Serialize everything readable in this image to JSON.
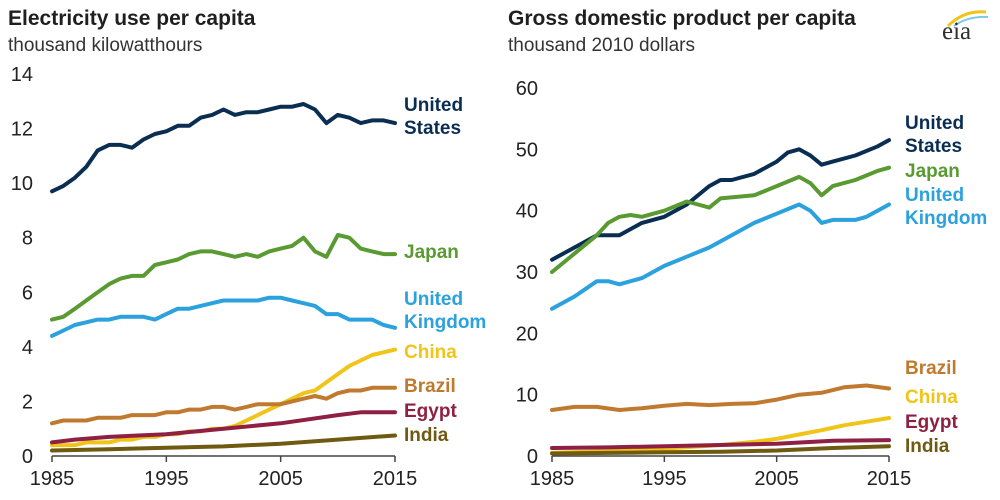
{
  "logo_text": "eia",
  "chart_data": [
    {
      "type": "line",
      "title": "Electricity use per capita",
      "subtitle": "thousand kilowatthours",
      "xlim": [
        1985,
        2015
      ],
      "ylim": [
        0,
        14
      ],
      "x_ticks": [
        1985,
        1995,
        2005,
        2015
      ],
      "y_ticks": [
        0,
        2,
        4,
        6,
        8,
        10,
        12,
        14
      ],
      "grid": false,
      "series": [
        {
          "label_lines": [
            "United",
            "States"
          ],
          "color": "#0a2e52",
          "x": [
            1985,
            1986,
            1987,
            1988,
            1989,
            1990,
            1991,
            1992,
            1993,
            1994,
            1995,
            1996,
            1997,
            1998,
            1999,
            2000,
            2001,
            2002,
            2003,
            2004,
            2005,
            2006,
            2007,
            2008,
            2009,
            2010,
            2011,
            2012,
            2013,
            2014,
            2015
          ],
          "y": [
            9.7,
            9.9,
            10.2,
            10.6,
            11.2,
            11.4,
            11.4,
            11.3,
            11.6,
            11.8,
            11.9,
            12.1,
            12.1,
            12.4,
            12.5,
            12.7,
            12.5,
            12.6,
            12.6,
            12.7,
            12.8,
            12.8,
            12.9,
            12.7,
            12.2,
            12.5,
            12.4,
            12.2,
            12.3,
            12.3,
            12.2
          ]
        },
        {
          "label_lines": [
            "Japan"
          ],
          "color": "#5a9a32",
          "x": [
            1985,
            1986,
            1987,
            1988,
            1989,
            1990,
            1991,
            1992,
            1993,
            1994,
            1995,
            1996,
            1997,
            1998,
            1999,
            2000,
            2001,
            2002,
            2003,
            2004,
            2005,
            2006,
            2007,
            2008,
            2009,
            2010,
            2011,
            2012,
            2013,
            2014,
            2015
          ],
          "y": [
            5.0,
            5.1,
            5.4,
            5.7,
            6.0,
            6.3,
            6.5,
            6.6,
            6.6,
            7.0,
            7.1,
            7.2,
            7.4,
            7.5,
            7.5,
            7.4,
            7.3,
            7.4,
            7.3,
            7.5,
            7.6,
            7.7,
            8.0,
            7.5,
            7.3,
            8.1,
            8.0,
            7.6,
            7.5,
            7.4,
            7.4
          ]
        },
        {
          "label_lines": [
            "United",
            "Kingdom"
          ],
          "color": "#2ba1de",
          "x": [
            1985,
            1986,
            1987,
            1988,
            1989,
            1990,
            1991,
            1992,
            1993,
            1994,
            1995,
            1996,
            1997,
            1998,
            1999,
            2000,
            2001,
            2002,
            2003,
            2004,
            2005,
            2006,
            2007,
            2008,
            2009,
            2010,
            2011,
            2012,
            2013,
            2014,
            2015
          ],
          "y": [
            4.4,
            4.6,
            4.8,
            4.9,
            5.0,
            5.0,
            5.1,
            5.1,
            5.1,
            5.0,
            5.2,
            5.4,
            5.4,
            5.5,
            5.6,
            5.7,
            5.7,
            5.7,
            5.7,
            5.8,
            5.8,
            5.7,
            5.6,
            5.5,
            5.2,
            5.2,
            5.0,
            5.0,
            5.0,
            4.8,
            4.7
          ]
        },
        {
          "label_lines": [
            "China"
          ],
          "color": "#f0c419",
          "x": [
            1985,
            1986,
            1987,
            1988,
            1989,
            1990,
            1991,
            1992,
            1993,
            1994,
            1995,
            1996,
            1997,
            1998,
            1999,
            2000,
            2001,
            2002,
            2003,
            2004,
            2005,
            2006,
            2007,
            2008,
            2009,
            2010,
            2011,
            2012,
            2013,
            2014,
            2015
          ],
          "y": [
            0.4,
            0.4,
            0.4,
            0.5,
            0.5,
            0.5,
            0.6,
            0.6,
            0.7,
            0.7,
            0.8,
            0.8,
            0.9,
            0.9,
            1.0,
            1.0,
            1.1,
            1.3,
            1.5,
            1.7,
            1.9,
            2.1,
            2.3,
            2.4,
            2.7,
            3.0,
            3.3,
            3.5,
            3.7,
            3.8,
            3.9
          ]
        },
        {
          "label_lines": [
            "Brazil"
          ],
          "color": "#c07a30",
          "x": [
            1985,
            1986,
            1987,
            1988,
            1989,
            1990,
            1991,
            1992,
            1993,
            1994,
            1995,
            1996,
            1997,
            1998,
            1999,
            2000,
            2001,
            2002,
            2003,
            2004,
            2005,
            2006,
            2007,
            2008,
            2009,
            2010,
            2011,
            2012,
            2013,
            2014,
            2015
          ],
          "y": [
            1.2,
            1.3,
            1.3,
            1.3,
            1.4,
            1.4,
            1.4,
            1.5,
            1.5,
            1.5,
            1.6,
            1.6,
            1.7,
            1.7,
            1.8,
            1.8,
            1.7,
            1.8,
            1.9,
            1.9,
            1.9,
            2.0,
            2.1,
            2.2,
            2.1,
            2.3,
            2.4,
            2.4,
            2.5,
            2.5,
            2.5
          ]
        },
        {
          "label_lines": [
            "Egypt"
          ],
          "color": "#8e2043",
          "x": [
            1985,
            1987,
            1990,
            1995,
            2000,
            2005,
            2010,
            2012,
            2015
          ],
          "y": [
            0.5,
            0.6,
            0.7,
            0.8,
            1.0,
            1.2,
            1.5,
            1.6,
            1.6
          ]
        },
        {
          "label_lines": [
            "India"
          ],
          "color": "#6e5a10",
          "x": [
            1985,
            1990,
            1995,
            2000,
            2005,
            2010,
            2015
          ],
          "y": [
            0.2,
            0.25,
            0.3,
            0.35,
            0.45,
            0.6,
            0.75
          ]
        }
      ]
    },
    {
      "type": "line",
      "title": "Gross domestic product per capita",
      "subtitle": "thousand 2010 dollars",
      "xlim": [
        1985,
        2015
      ],
      "ylim": [
        0,
        60
      ],
      "x_ticks": [
        1985,
        1995,
        2005,
        2015
      ],
      "y_ticks": [
        0,
        10,
        20,
        30,
        40,
        50,
        60
      ],
      "grid": false,
      "series": [
        {
          "label_lines": [
            "United",
            "States"
          ],
          "color": "#0a2e52",
          "x": [
            1985,
            1987,
            1989,
            1991,
            1993,
            1995,
            1997,
            1999,
            2000,
            2001,
            2003,
            2005,
            2006,
            2007,
            2008,
            2009,
            2010,
            2012,
            2014,
            2015
          ],
          "y": [
            32,
            34,
            36,
            36,
            38,
            39,
            41,
            44,
            45,
            45,
            46,
            48,
            49.5,
            50,
            49,
            47.5,
            48,
            49,
            50.5,
            51.5
          ]
        },
        {
          "label_lines": [
            "Japan"
          ],
          "color": "#5a9a32",
          "x": [
            1985,
            1987,
            1989,
            1990,
            1991,
            1992,
            1993,
            1995,
            1997,
            1998,
            1999,
            2000,
            2003,
            2005,
            2007,
            2008,
            2009,
            2010,
            2012,
            2014,
            2015
          ],
          "y": [
            30,
            33,
            36,
            38,
            39,
            39.3,
            39,
            40,
            41.5,
            41,
            40.5,
            42,
            42.5,
            44,
            45.5,
            44.5,
            42.5,
            44,
            45,
            46.5,
            47
          ]
        },
        {
          "label_lines": [
            "United",
            "Kingdom"
          ],
          "color": "#2ba1de",
          "x": [
            1985,
            1987,
            1989,
            1990,
            1991,
            1993,
            1995,
            1997,
            1999,
            2001,
            2003,
            2005,
            2007,
            2008,
            2009,
            2010,
            2012,
            2013,
            2015
          ],
          "y": [
            24,
            26,
            28.5,
            28.5,
            28,
            29,
            31,
            32.5,
            34,
            36,
            38,
            39.5,
            41,
            40,
            38,
            38.5,
            38.5,
            39,
            41
          ]
        },
        {
          "label_lines": [
            "Brazil"
          ],
          "color": "#c07a30",
          "x": [
            1985,
            1987,
            1989,
            1991,
            1993,
            1995,
            1997,
            1999,
            2001,
            2003,
            2005,
            2007,
            2009,
            2011,
            2013,
            2015
          ],
          "y": [
            7.5,
            8,
            8,
            7.5,
            7.8,
            8.2,
            8.5,
            8.3,
            8.5,
            8.6,
            9.2,
            10,
            10.3,
            11.2,
            11.5,
            11
          ]
        },
        {
          "label_lines": [
            "China"
          ],
          "color": "#f0c419",
          "x": [
            1985,
            1990,
            1995,
            2000,
            2003,
            2005,
            2007,
            2009,
            2011,
            2013,
            2015
          ],
          "y": [
            0.5,
            0.8,
            1.2,
            1.8,
            2.3,
            2.8,
            3.5,
            4.2,
            5,
            5.6,
            6.2
          ]
        },
        {
          "label_lines": [
            "Egypt"
          ],
          "color": "#8e2043",
          "x": [
            1985,
            1990,
            1995,
            2000,
            2005,
            2010,
            2015
          ],
          "y": [
            1.3,
            1.4,
            1.6,
            1.8,
            2.0,
            2.5,
            2.6
          ]
        },
        {
          "label_lines": [
            "India"
          ],
          "color": "#6e5a10",
          "x": [
            1985,
            1990,
            1995,
            2000,
            2005,
            2010,
            2015
          ],
          "y": [
            0.4,
            0.5,
            0.6,
            0.7,
            0.9,
            1.3,
            1.6
          ]
        }
      ]
    }
  ]
}
